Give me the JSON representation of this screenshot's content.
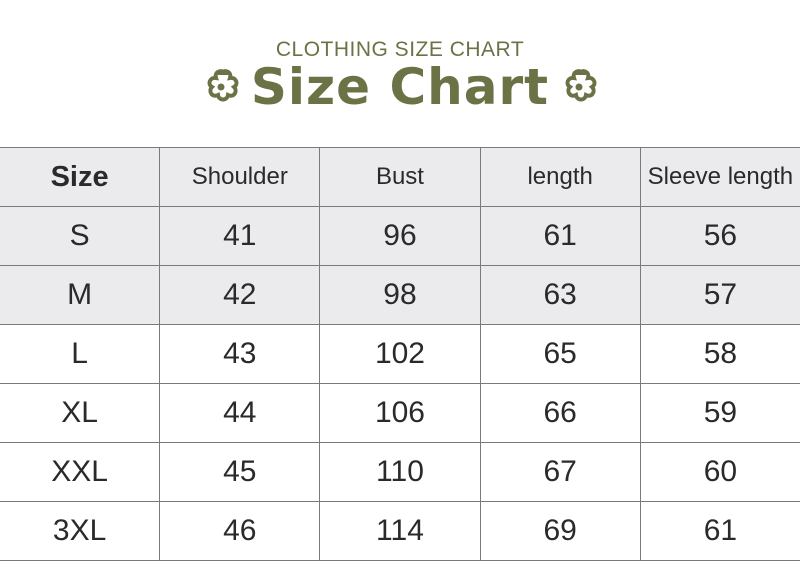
{
  "header": {
    "subtitle": "CLOTHING SIZE CHART",
    "title": "Size Chart",
    "accent_color": "#6b7346",
    "icons": [
      "flower-icon",
      "flower-icon"
    ]
  },
  "table": {
    "columns": [
      "Size",
      "Shoulder",
      "Bust",
      "length",
      "Sleeve length"
    ],
    "rows": [
      [
        "S",
        "41",
        "96",
        "61",
        "56"
      ],
      [
        "M",
        "42",
        "98",
        "63",
        "57"
      ],
      [
        "L",
        "43",
        "102",
        "65",
        "58"
      ],
      [
        "XL",
        "44",
        "106",
        "66",
        "59"
      ],
      [
        "XXL",
        "45",
        "110",
        "67",
        "60"
      ],
      [
        "3XL",
        "46",
        "114",
        "69",
        "61"
      ]
    ]
  }
}
